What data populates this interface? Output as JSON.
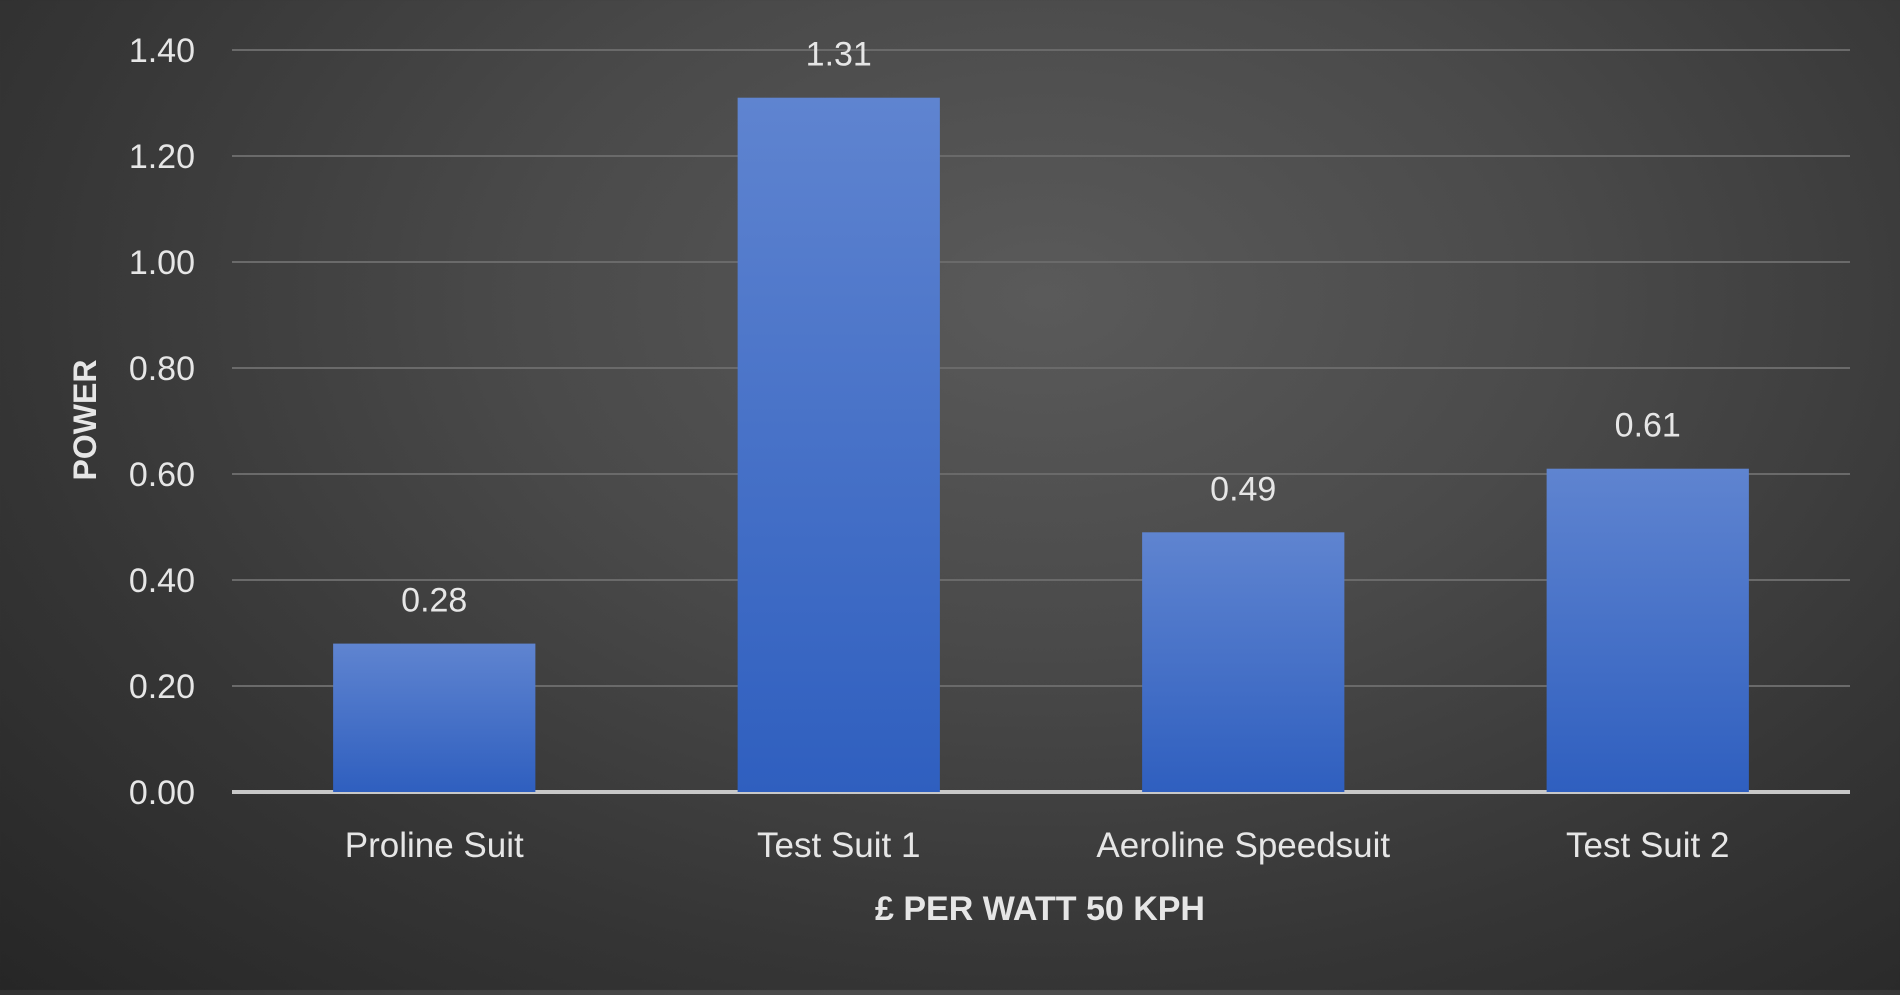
{
  "chart_data": {
    "type": "bar",
    "title": "",
    "xlabel": "£ PER WATT 50 KPH",
    "ylabel": "POWER",
    "categories": [
      "Proline Suit",
      "Test Suit 1",
      "Aeroline Speedsuit",
      "Test Suit 2"
    ],
    "series": [
      {
        "values": [
          0.28,
          1.31,
          0.49,
          0.61
        ],
        "value_labels": [
          "0.28",
          "1.31",
          "0.49",
          "0.61"
        ]
      }
    ],
    "ylim": [
      0,
      1.4
    ],
    "yticks": [
      "0.00",
      "0.20",
      "0.40",
      "0.60",
      "0.80",
      "1.00",
      "1.20",
      "1.40"
    ],
    "grid": true,
    "legend": "none",
    "colors": {
      "bar_top": "#5f84d0",
      "bar_bottom": "#2f5fbf",
      "gridline": "#6a6a6a",
      "baseline": "#c8c8c8",
      "text": "#e6e6e6"
    }
  }
}
